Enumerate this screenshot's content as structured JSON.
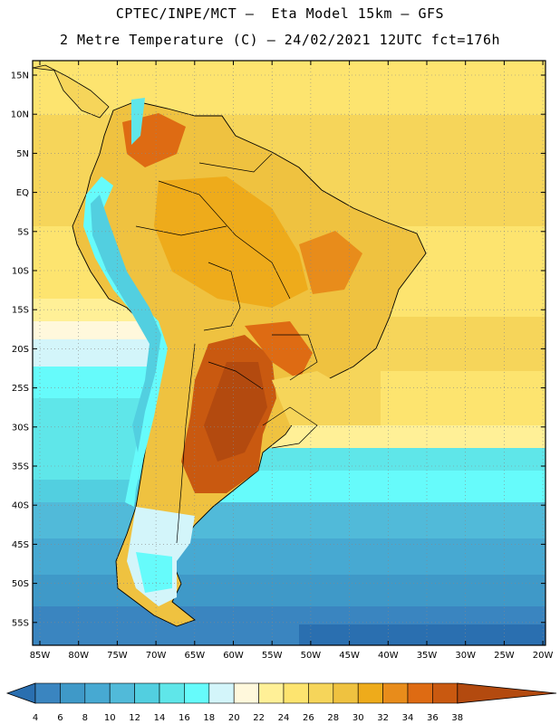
{
  "title_line1": "CPTEC/INPE/MCT –  Eta Model 15km – GFS",
  "title_line2": "2 Metre Temperature (C) – 24/02/2021 12UTC fct=176h",
  "lat_labels": [
    "15N",
    "10N",
    "5N",
    "EQ",
    "5S",
    "10S",
    "15S",
    "20S",
    "25S",
    "30S",
    "35S",
    "40S",
    "45S",
    "50S",
    "55S"
  ],
  "lon_labels": [
    "85W",
    "80W",
    "75W",
    "70W",
    "65W",
    "60W",
    "55W",
    "50W",
    "45W",
    "40W",
    "35W",
    "30W",
    "25W",
    "20W"
  ],
  "colorbar": {
    "labels": [
      "4",
      "6",
      "8",
      "10",
      "12",
      "14",
      "16",
      "18",
      "20",
      "22",
      "24",
      "26",
      "28",
      "30",
      "32",
      "34",
      "36",
      "38"
    ],
    "colors": [
      "#2a6fb0",
      "#3a85c0",
      "#3f99c8",
      "#47a9d2",
      "#51bad9",
      "#52cfe0",
      "#5fe6e9",
      "#66fbfb",
      "#d3f5fa",
      "#fff8dc",
      "#fff097",
      "#fde46f",
      "#f6d55a",
      "#efc240",
      "#eeab1b",
      "#e88c1b",
      "#de6b13",
      "#c95910",
      "#b34a0f"
    ]
  }
}
